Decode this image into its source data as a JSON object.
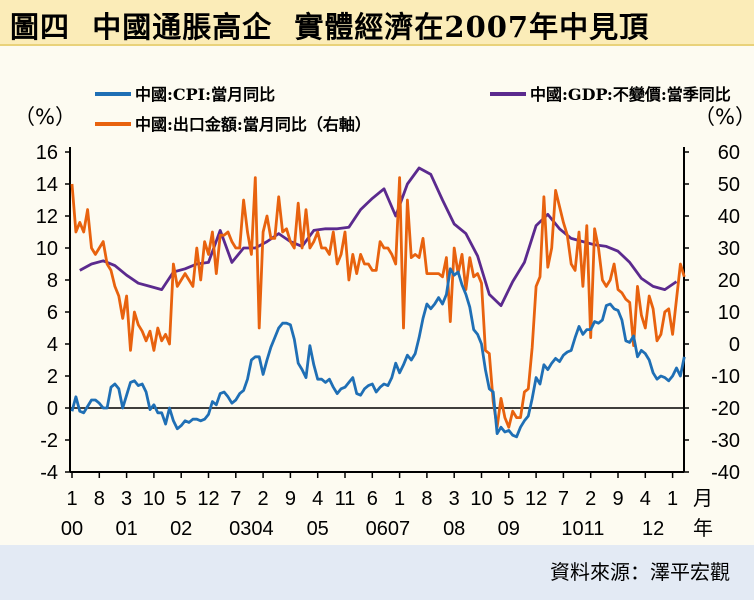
{
  "title": "圖四  中國通脹高企  實體經濟在2007年中見頂",
  "source": "資料來源：澤平宏觀",
  "chart_data": {
    "type": "line",
    "left_unit": "（%）",
    "right_unit": "（%）",
    "left_ylim": [
      -4,
      16
    ],
    "right_ylim": [
      -40,
      60
    ],
    "left_ticks": [
      "16",
      "14",
      "12",
      "10",
      "8",
      "6",
      "4",
      "2",
      "0",
      "-2",
      "-4"
    ],
    "right_ticks": [
      "60",
      "50",
      "40",
      "30",
      "20",
      "10",
      "0",
      "-10",
      "-20",
      "-30",
      "-40"
    ],
    "x_month_labels": [
      "1",
      "8",
      "3",
      "10",
      "5",
      "12",
      "7",
      "2",
      "9",
      "4",
      "11",
      "6",
      "1",
      "8",
      "3",
      "10",
      "5",
      "12",
      "7",
      "2",
      "9",
      "4",
      "1"
    ],
    "x_year_labels": [
      {
        "label": "00",
        "at": "2000-01"
      },
      {
        "label": "01",
        "at": "2001-03"
      },
      {
        "label": "02",
        "at": "2002-05"
      },
      {
        "label": "0304",
        "at": "2003-11"
      },
      {
        "label": "05",
        "at": "2005-04"
      },
      {
        "label": "0607",
        "at": "2006-10"
      },
      {
        "label": "08",
        "at": "2008-03"
      },
      {
        "label": "09",
        "at": "2009-05"
      },
      {
        "label": "1011",
        "at": "2010-12"
      },
      {
        "label": "12",
        "at": "2012-06"
      }
    ],
    "x_month_suffix": "月",
    "x_year_suffix": "年",
    "x_start": "2000-01",
    "zero_line": true,
    "legend_placement": "top",
    "series": [
      {
        "name": "中國:CPI:當月同比",
        "color": "#1f6fb5",
        "axis": "left",
        "freq": "monthly",
        "start": "2000-01",
        "values": [
          -0.2,
          0.7,
          -0.2,
          -0.3,
          0.1,
          0.5,
          0.5,
          0.3,
          0,
          0,
          1.3,
          1.5,
          1.2,
          0,
          0.8,
          1.6,
          1.7,
          1.4,
          1.5,
          1,
          -0.1,
          0.2,
          -0.3,
          -0.3,
          -1,
          0,
          -0.8,
          -1.3,
          -1.1,
          -0.8,
          -0.9,
          -0.7,
          -0.7,
          -0.8,
          -0.7,
          -0.4,
          0.4,
          0.2,
          0.9,
          1,
          0.7,
          0.3,
          0.5,
          0.9,
          1.1,
          1.8,
          3,
          3.2,
          3.2,
          2.1,
          3,
          3.8,
          4.4,
          5,
          5.3,
          5.3,
          5.2,
          4.3,
          2.8,
          2.4,
          1.9,
          3.9,
          2.7,
          1.8,
          1.8,
          1.6,
          1.8,
          1.3,
          0.9,
          1.2,
          1.3,
          1.6,
          1.9,
          0.9,
          0.8,
          1.2,
          1.4,
          1.5,
          1,
          1.3,
          1.5,
          1.4,
          1.9,
          2.8,
          2.2,
          2.7,
          3.3,
          3,
          3.4,
          4.4,
          5.6,
          6.5,
          6.2,
          6.5,
          6.9,
          6.5,
          7.1,
          8.7,
          8.3,
          8.5,
          7.7,
          7.1,
          6.3,
          4.9,
          4.6,
          4,
          2.4,
          1.2,
          1,
          -1.6,
          -1.2,
          -1.5,
          -1.4,
          -1.7,
          -1.8,
          -1.2,
          -0.8,
          -0.5,
          0.6,
          1.9,
          1.5,
          2.7,
          2.4,
          2.8,
          3.1,
          2.9,
          3.3,
          3.5,
          3.6,
          4.4,
          5.1,
          4.6,
          4.9,
          4.9,
          5.4,
          5.3,
          5.5,
          6.4,
          6.5,
          6.2,
          6.1,
          5.5,
          4.2,
          4.1,
          4.5,
          3.2,
          3.6,
          3.4,
          3,
          2.2,
          1.8,
          2,
          1.9,
          1.7,
          2,
          2.5,
          2,
          3.2
        ]
      },
      {
        "name": "中國:GDP:不變價:當季同比",
        "color": "#5b2a8e",
        "axis": "left",
        "freq": "quarterly",
        "start": "2000-03",
        "values": [
          8.6,
          9.0,
          9.2,
          8.9,
          8.3,
          7.8,
          7.6,
          7.4,
          8.5,
          8.7,
          9.0,
          9.1,
          11.1,
          9.1,
          10.0,
          10.0,
          10.4,
          10.9,
          10.4,
          10.1,
          11.1,
          11.2,
          11.2,
          11.3,
          12.4,
          13.1,
          13.7,
          12.0,
          14.0,
          15.0,
          14.6,
          13.0,
          11.5,
          10.9,
          9.5,
          7.1,
          6.4,
          7.9,
          9.1,
          11.4,
          12.1,
          11.2,
          10.6,
          10.4,
          10.2,
          10.1,
          9.8,
          9.1,
          8.1,
          7.6,
          7.4,
          7.9
        ]
      },
      {
        "name": "中國:出口金額:當月同比（右軸）",
        "color": "#e8620e",
        "axis": "right",
        "freq": "monthly",
        "start": "2000-01",
        "values": [
          50,
          35,
          38,
          35,
          42,
          30,
          28,
          30,
          32,
          25,
          23,
          18,
          15,
          8,
          15,
          -2,
          10,
          6,
          4,
          1,
          4,
          -2,
          5,
          1,
          3,
          0,
          25,
          18,
          20,
          22,
          20,
          18,
          30,
          20,
          32,
          28,
          35,
          22,
          34,
          34,
          35,
          32,
          30,
          30,
          45,
          35,
          28,
          52,
          5,
          35,
          40,
          33,
          33,
          46,
          35,
          36,
          32,
          30,
          44,
          30,
          42,
          30,
          32,
          35,
          30,
          30,
          28,
          35,
          25,
          28,
          35,
          20,
          28,
          22,
          28,
          25,
          25,
          23,
          23,
          32,
          30,
          30,
          28,
          25,
          52,
          5,
          45,
          27,
          28,
          27,
          33,
          22,
          22,
          22,
          22,
          21,
          27,
          7,
          30,
          22,
          28,
          17,
          27,
          21,
          22,
          19,
          -2,
          -3,
          -18,
          -26,
          -17,
          -23,
          -26,
          -21,
          -23,
          -23,
          -15,
          -14,
          -1,
          18,
          21,
          46,
          24,
          30,
          48,
          43,
          38,
          34,
          25,
          23,
          35,
          18,
          37,
          2,
          36,
          30,
          20,
          18,
          20,
          25,
          17,
          16,
          14,
          13,
          -0.5,
          18,
          9,
          5,
          15,
          11,
          1,
          3,
          10,
          11,
          3,
          14,
          25,
          21
        ]
      }
    ]
  }
}
